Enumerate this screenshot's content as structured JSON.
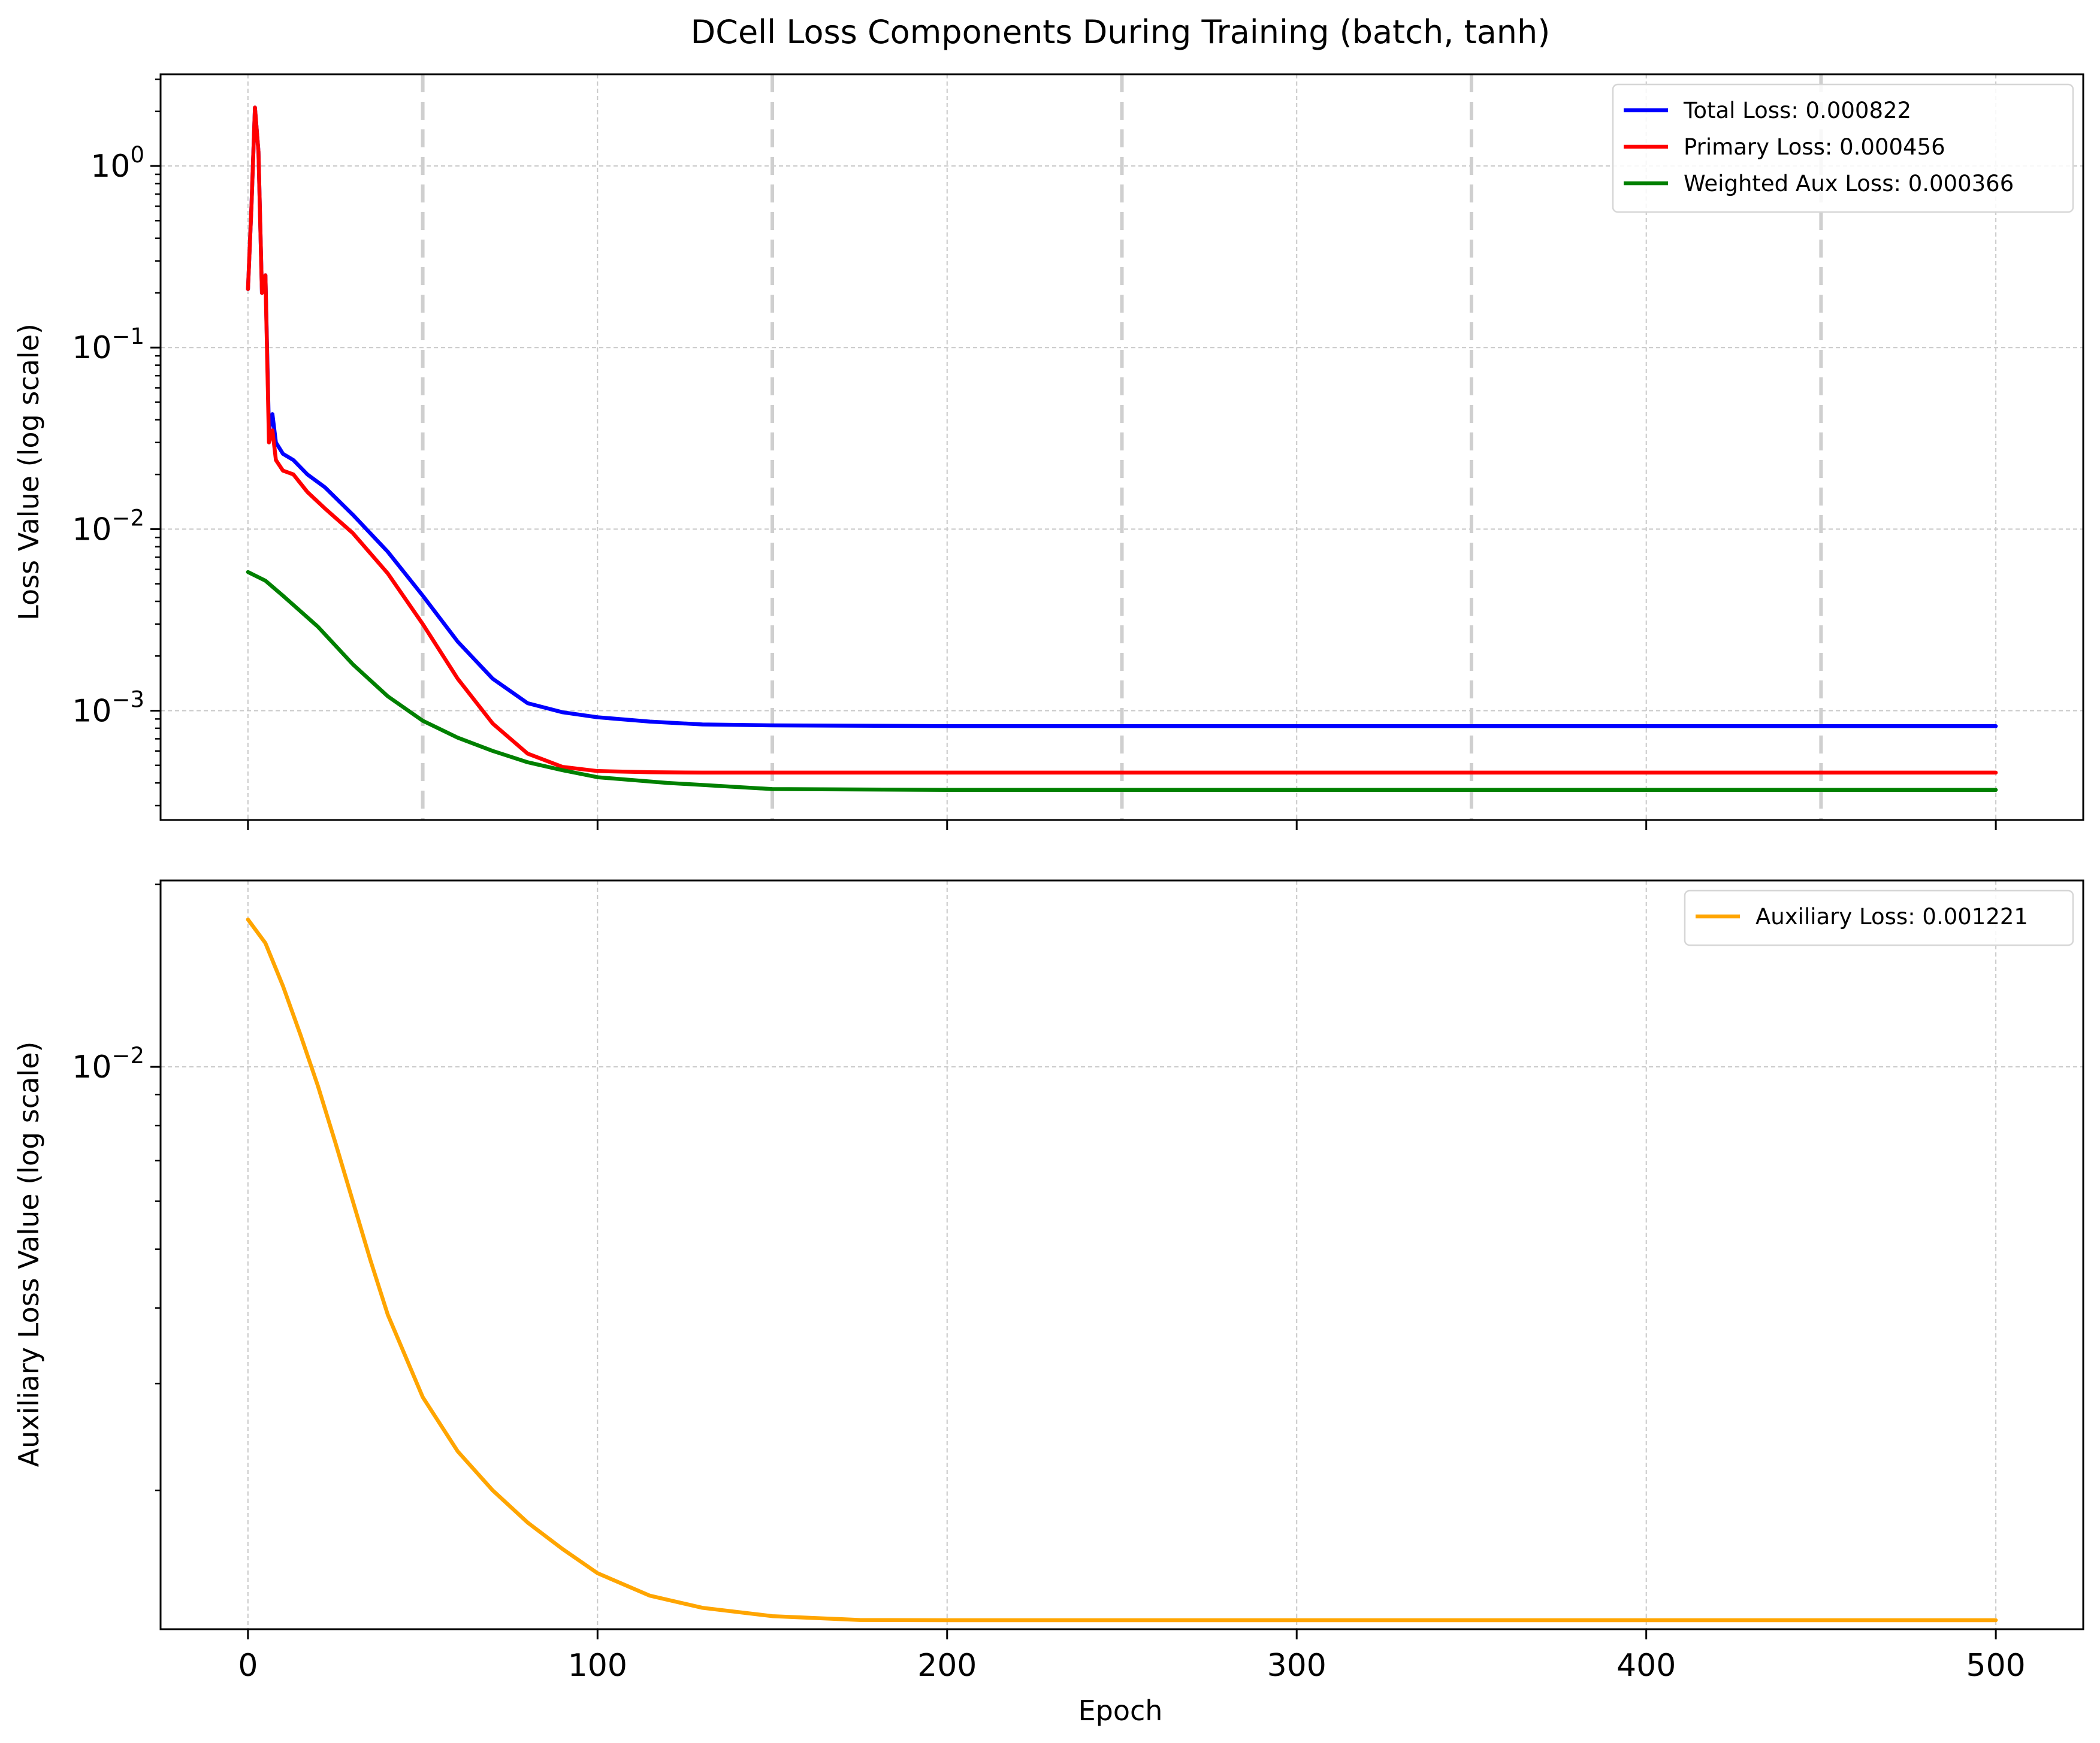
{
  "chart_data": {
    "title": "DCell Loss Components During Training (batch, tanh)",
    "xlabel": "Epoch",
    "xlim": [
      -25,
      525
    ],
    "xticks": [
      0,
      100,
      200,
      300,
      400,
      500
    ],
    "xtick_labels": [
      "0",
      "100",
      "200",
      "300",
      "400",
      "500"
    ],
    "phase_markers": [
      50,
      150,
      250,
      350,
      450
    ],
    "panels": [
      {
        "type": "line",
        "yscale": "log",
        "ylabel": "Loss Value (log scale)",
        "ylim": [
          0.00025,
          3.2
        ],
        "yticks": [
          1,
          0.1,
          0.01,
          0.001
        ],
        "ytick_labels": [
          {
            "base": "10",
            "exp": "0"
          },
          {
            "base": "10",
            "exp": "−1"
          },
          {
            "base": "10",
            "exp": "−2"
          },
          {
            "base": "10",
            "exp": "−3"
          }
        ],
        "grid": true,
        "legend_position": "top-right",
        "series": [
          {
            "name": "Total Loss: 0.000822",
            "color": "#0000ff",
            "x": [
              0,
              1,
              2,
              3,
              4,
              5,
              6,
              7,
              8,
              10,
              13,
              17,
              22,
              30,
              40,
              50,
              60,
              70,
              80,
              90,
              100,
              115,
              130,
              150,
              200,
              300,
              400,
              500
            ],
            "y": [
              0.21,
              0.6,
              2.1,
              1.2,
              0.2,
              0.25,
              0.035,
              0.043,
              0.03,
              0.026,
              0.024,
              0.02,
              0.017,
              0.012,
              0.0075,
              0.0043,
              0.0024,
              0.0015,
              0.0011,
              0.00098,
              0.00092,
              0.00087,
              0.00084,
              0.00083,
              0.000822,
              0.000822,
              0.000822,
              0.000822
            ]
          },
          {
            "name": "Primary Loss: 0.000456",
            "color": "#ff0000",
            "x": [
              0,
              1,
              2,
              3,
              4,
              5,
              6,
              7,
              8,
              10,
              13,
              17,
              22,
              30,
              40,
              50,
              60,
              70,
              80,
              90,
              100,
              115,
              130,
              150,
              200,
              300,
              400,
              500
            ],
            "y": [
              0.21,
              0.6,
              2.1,
              1.2,
              0.2,
              0.25,
              0.03,
              0.035,
              0.024,
              0.021,
              0.02,
              0.016,
              0.013,
              0.0095,
              0.0057,
              0.003,
              0.0015,
              0.00085,
              0.00058,
              0.00049,
              0.000465,
              0.000458,
              0.000456,
              0.000456,
              0.000456,
              0.000456,
              0.000456,
              0.000456
            ]
          },
          {
            "name": "Weighted Aux Loss: 0.000366",
            "color": "#008000",
            "x": [
              0,
              5,
              10,
              20,
              30,
              40,
              50,
              60,
              70,
              80,
              90,
              100,
              120,
              150,
              200,
              300,
              400,
              500
            ],
            "y": [
              0.0058,
              0.0052,
              0.0043,
              0.0029,
              0.0018,
              0.0012,
              0.00088,
              0.00071,
              0.0006,
              0.00052,
              0.00047,
              0.00043,
              0.0004,
              0.00037,
              0.000366,
              0.000366,
              0.000366,
              0.000366
            ]
          }
        ]
      },
      {
        "type": "line",
        "yscale": "log",
        "ylabel": "Auxiliary Loss Value (log scale)",
        "ylim": [
          0.00118,
          0.0203
        ],
        "yticks": [
          0.01
        ],
        "ytick_labels": [
          {
            "base": "10",
            "exp": "−2"
          }
        ],
        "grid": true,
        "legend_position": "top-right",
        "series": [
          {
            "name": "Auxiliary Loss: 0.001221",
            "color": "#ffa500",
            "x": [
              0,
              5,
              10,
              15,
              20,
              25,
              30,
              35,
              40,
              50,
              60,
              70,
              80,
              90,
              100,
              115,
              130,
              150,
              175,
              200,
              300,
              400,
              500
            ],
            "y": [
              0.0175,
              0.016,
              0.0136,
              0.0113,
              0.0093,
              0.0075,
              0.006,
              0.0048,
              0.0039,
              0.00285,
              0.00232,
              0.002,
              0.00177,
              0.0016,
              0.00146,
              0.00134,
              0.00128,
              0.00124,
              0.001222,
              0.001221,
              0.001221,
              0.001221,
              0.001221
            ]
          }
        ]
      }
    ]
  }
}
